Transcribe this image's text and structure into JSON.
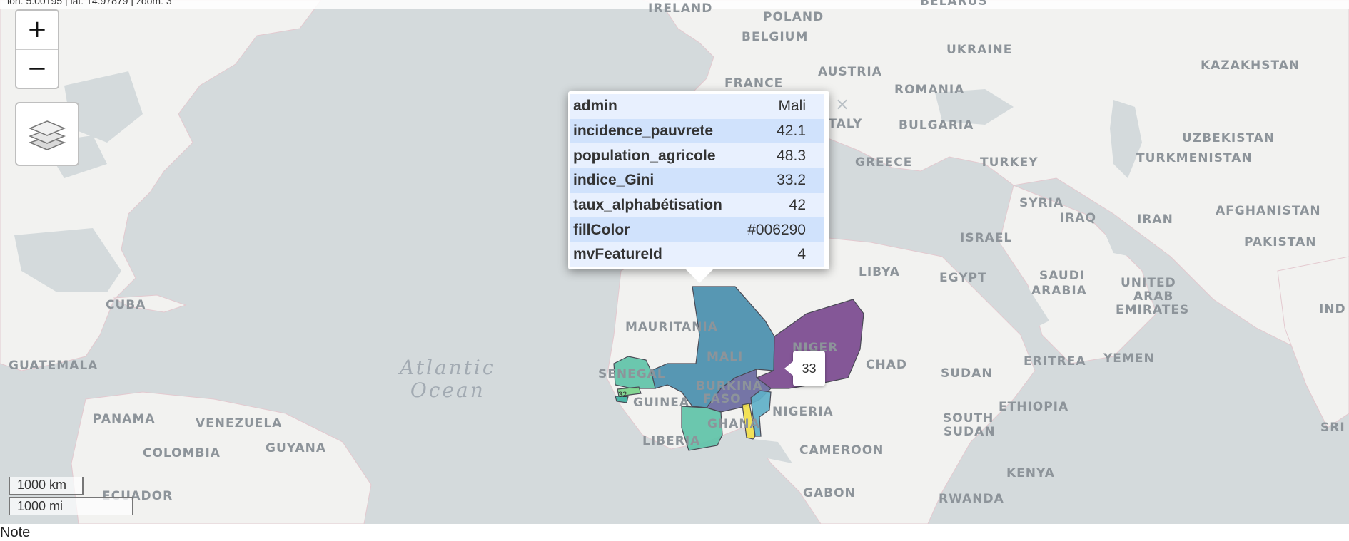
{
  "header": {
    "coords_text": "lon: 5.00195 | lat: 14.97879 | zoom: 3"
  },
  "controls": {
    "zoom_in": "+",
    "zoom_out": "−"
  },
  "scale": {
    "km": "1000 km",
    "mi": "1000 mi"
  },
  "oceans": [
    "Atlantic",
    "Ocean"
  ],
  "countries": [
    "IRELAND",
    "POLAND",
    "BELARUS",
    "BELGIUM",
    "UKRAINE",
    "KAZAKHSTAN",
    "AUSTRIA",
    "FRANCE",
    "ROMANIA",
    "ITALY",
    "BULGARIA",
    "UZBEKISTAN",
    "GREECE",
    "TURKEY",
    "TURKMENISTAN",
    "SYRIA",
    "IRAQ",
    "IRAN",
    "AFGHANISTAN",
    "ISRAEL",
    "PAKISTAN",
    "LIBYA",
    "EGYPT",
    "SAUDI",
    "ARABIA",
    "UNITED",
    "ARAB",
    "EMIRATES",
    "IND",
    "CUBA",
    "MAURITANIA",
    "NIGER",
    "MALI",
    "SENEGAL",
    "CHAD",
    "GUATEMALA",
    "BURKINA",
    "FASO",
    "GUINEA",
    "SUDAN",
    "ERITREA",
    "YEMEN",
    "NIGERIA",
    "ETHIOPIA",
    "PANAMA",
    "VENEZUELA",
    "GHANA",
    "SOUTH",
    "SUDAN",
    "LIBERIA",
    "COLOMBIA",
    "GUYANA",
    "CAMEROON",
    "KENYA",
    "SRI L",
    "GABON",
    "RWANDA",
    "ECUADOR"
  ],
  "popup": {
    "rows": [
      {
        "key": "admin",
        "value": "Mali"
      },
      {
        "key": "incidence_pauvrete",
        "value": "42.1"
      },
      {
        "key": "population_agricole",
        "value": "48.3"
      },
      {
        "key": "indice_Gini",
        "value": "33.2"
      },
      {
        "key": "taux_alphabétisation",
        "value": "42"
      },
      {
        "key": "fillColor",
        "value": "#006290"
      },
      {
        "key": "mvFeatureId",
        "value": "4"
      }
    ],
    "close": "×"
  },
  "tooltip": {
    "value": "33"
  },
  "small_label": "32",
  "footer": {
    "text": "Note"
  },
  "colors": {
    "water": "#d4dadc",
    "land": "#f2f2f0",
    "mali": "#4a8fae",
    "niger": "#7b4a8f",
    "senegal": "#5fc3a8",
    "ghana": "#5fc3a8",
    "togo": "#f2e04a",
    "burkina": "#6a6aa0"
  }
}
